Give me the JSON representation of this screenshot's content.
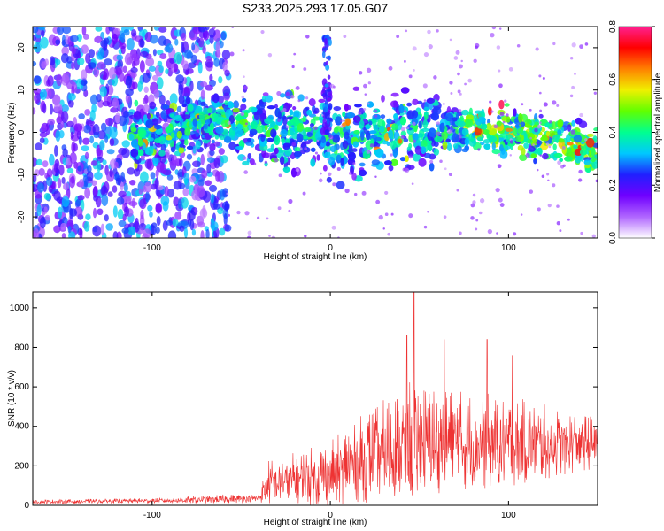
{
  "chart_data": [
    {
      "type": "heatmap",
      "title": "S233.2025.293.17.05.G07",
      "xlabel": "Height of straight line (km)",
      "ylabel": "Frequency (Hz)",
      "xlim": [
        -167,
        150
      ],
      "ylim": [
        -25,
        25
      ],
      "xticks": [
        -100,
        0,
        100
      ],
      "yticks": [
        -20,
        -10,
        0,
        10,
        20
      ],
      "colorbar": {
        "label": "Normalized spectral amplitude",
        "range": [
          0,
          0.8
        ],
        "ticks": [
          "0.0",
          "0.2",
          "0.4",
          "0.6",
          "0.8"
        ],
        "colors": [
          "#ffffff",
          "#b066ff",
          "#7000ff",
          "#2020ff",
          "#00c8ff",
          "#00ff90",
          "#60ff00",
          "#f0f000",
          "#ff8000",
          "#ff0000",
          "#ff2090"
        ]
      },
      "ridge_trend": [
        {
          "x": -110,
          "y": -1
        },
        {
          "x": -80,
          "y": 1
        },
        {
          "x": -60,
          "y": 3
        },
        {
          "x": -30,
          "y": 0
        },
        {
          "x": -5,
          "y": 1
        },
        {
          "x": 0,
          "y": -2
        },
        {
          "x": 40,
          "y": 0
        },
        {
          "x": 80,
          "y": 1
        },
        {
          "x": 120,
          "y": -1
        },
        {
          "x": 150,
          "y": -4
        }
      ]
    },
    {
      "type": "line",
      "xlabel": "Height of straight line (km)",
      "ylabel": "SNR (10 * v/v)",
      "xlim": [
        -167,
        150
      ],
      "ylim": [
        0,
        1080
      ],
      "xticks": [
        -100,
        0,
        100
      ],
      "yticks": [
        0,
        200,
        400,
        600,
        800,
        1000
      ],
      "color": "#ee3333",
      "series_envelope": [
        {
          "x": -167,
          "base": 15,
          "amp": 20
        },
        {
          "x": -100,
          "base": 20,
          "amp": 25
        },
        {
          "x": -60,
          "base": 25,
          "amp": 45
        },
        {
          "x": -40,
          "base": 30,
          "amp": 40
        },
        {
          "x": -35,
          "base": 80,
          "amp": 230
        },
        {
          "x": 0,
          "base": 110,
          "amp": 330
        },
        {
          "x": 10,
          "base": 150,
          "amp": 400
        },
        {
          "x": 30,
          "base": 200,
          "amp": 520
        },
        {
          "x": 45,
          "base": 230,
          "amp": 640
        },
        {
          "x": 60,
          "base": 250,
          "amp": 540
        },
        {
          "x": 100,
          "base": 250,
          "amp": 470
        },
        {
          "x": 150,
          "base": 280,
          "amp": 260
        }
      ],
      "peaks": [
        {
          "x": 47,
          "y": 1080
        },
        {
          "x": 43,
          "y": 860
        },
        {
          "x": 64,
          "y": 840
        },
        {
          "x": 88,
          "y": 840
        },
        {
          "x": 102,
          "y": 760
        }
      ]
    }
  ]
}
